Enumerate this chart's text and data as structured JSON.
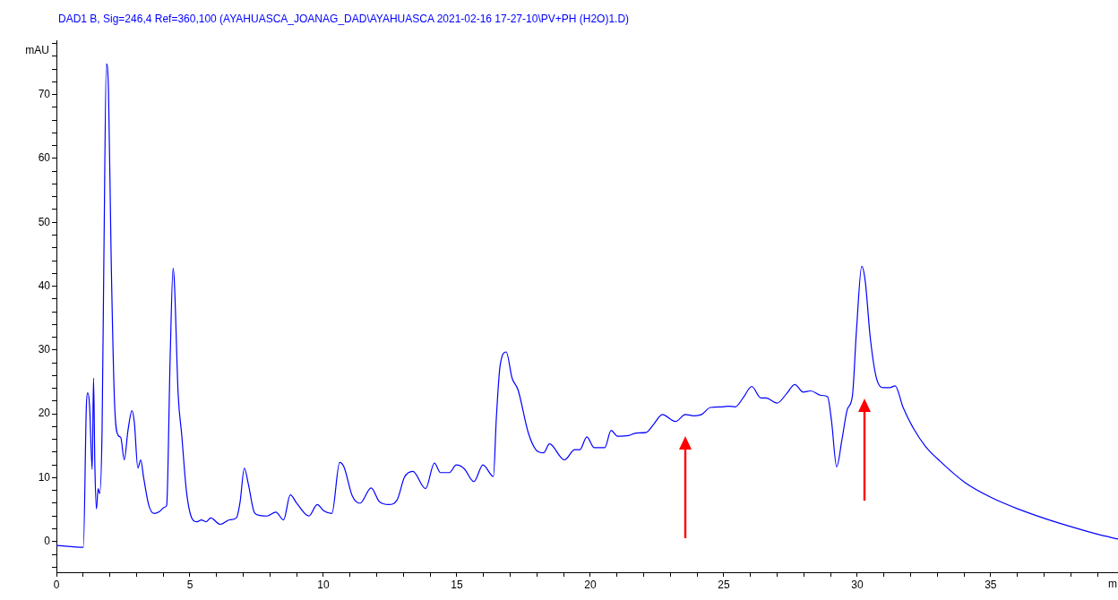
{
  "chart_data": {
    "type": "line",
    "title": "DAD1 B, Sig=246,4 Ref=360,100 (AYAHUASCA_JOANAG_DAD\\AYAHUASCA 2021-02-16 17-27-10\\PV+PH (H2O)1.D)",
    "ylabel": "mAU",
    "xlabel": "m",
    "x": [
      0,
      1.01,
      1.12,
      1.17,
      1.24,
      1.34,
      1.39,
      1.44,
      1.5,
      1.56,
      1.62,
      1.71,
      1.78,
      1.87,
      1.95,
      2.05,
      2.18,
      2.32,
      2.41,
      2.54,
      2.68,
      2.83,
      2.92,
      3.05,
      3.16,
      3.26,
      3.46,
      3.66,
      3.86,
      4.06,
      4.13,
      4.26,
      4.37,
      4.42,
      4.56,
      4.69,
      4.87,
      5.07,
      5.27,
      5.43,
      5.6,
      5.78,
      6.14,
      6.48,
      6.74,
      6.88,
      7.04,
      7.19,
      7.42,
      7.62,
      7.89,
      8.22,
      8.51,
      8.76,
      9.02,
      9.46,
      9.77,
      10.02,
      10.32,
      10.61,
      10.77,
      11.08,
      11.37,
      11.79,
      12.09,
      12.45,
      12.76,
      13.04,
      13.35,
      13.83,
      14.16,
      14.39,
      14.72,
      14.98,
      15.28,
      15.64,
      15.98,
      16.37,
      16.48,
      16.62,
      16.85,
      17.07,
      17.29,
      17.68,
      17.96,
      18.25,
      18.47,
      19.03,
      19.42,
      19.61,
      19.87,
      20.15,
      20.54,
      20.78,
      21.02,
      21.43,
      21.71,
      22.1,
      22.38,
      22.7,
      23.19,
      23.56,
      23.89,
      24.17,
      24.5,
      24.96,
      25.18,
      25.43,
      25.74,
      26.05,
      26.39,
      26.58,
      27,
      27.36,
      27.66,
      27.98,
      28.26,
      28.65,
      28.89,
      29.04,
      29.23,
      29.43,
      29.63,
      29.82,
      29.97,
      30.17,
      30.3,
      30.49,
      30.72,
      31,
      31.22,
      31.42,
      31.72,
      32.11,
      32.56,
      33.1,
      34.02,
      35.02,
      36.03,
      37.04,
      38.04,
      39.05,
      39.77
    ],
    "series": [
      {
        "color": "#0000ff",
        "values": [
          -0.6,
          -0.9,
          21.1,
          23.3,
          21.4,
          11.3,
          25.6,
          11.8,
          5.1,
          8.3,
          7.5,
          17.5,
          45.5,
          74.8,
          70.7,
          44.4,
          21.4,
          16.6,
          16.3,
          12.8,
          17.4,
          20.5,
          18.6,
          11.5,
          12.8,
          10.2,
          5.7,
          4.4,
          4.7,
          5.4,
          5.7,
          28.7,
          42.8,
          40.5,
          23.1,
          16.9,
          7.9,
          3.7,
          3.1,
          3.4,
          3.1,
          3.7,
          2.7,
          3.4,
          3.7,
          6.2,
          11.5,
          9,
          4.5,
          4.1,
          4,
          4.6,
          3.4,
          7.3,
          5.9,
          4,
          5.8,
          4.8,
          4.4,
          12.4,
          11.7,
          7.2,
          6,
          8.4,
          6.3,
          5.8,
          6.5,
          10.1,
          11,
          8.3,
          12.3,
          10.8,
          10.8,
          12,
          11.4,
          9.4,
          12,
          10.2,
          19.3,
          27.5,
          29.7,
          25.6,
          23.8,
          17,
          14.4,
          13.9,
          15.3,
          12.8,
          14.4,
          14.4,
          16.4,
          14.7,
          14.7,
          17.4,
          16.5,
          16.6,
          17,
          17.1,
          18.4,
          19.9,
          18.8,
          19.9,
          19.7,
          19.9,
          21,
          21.1,
          21.2,
          21.1,
          22.6,
          24.3,
          22.5,
          22.5,
          21.7,
          23.2,
          24.6,
          23.4,
          23.6,
          22.9,
          22.7,
          18.8,
          11.7,
          16,
          20.7,
          22.8,
          32.9,
          43.1,
          40.8,
          31.9,
          25.6,
          24.1,
          24.1,
          24.4,
          21,
          17.7,
          14.9,
          12.6,
          9.3,
          6.9,
          5.1,
          3.6,
          2.3,
          1.1,
          0.4
        ]
      }
    ],
    "xlim": [
      0,
      39.77
    ],
    "ylim": [
      -4.8,
      78.5
    ],
    "xticks": [
      0,
      {
        "value": 1,
        "label": null
      },
      {
        "value": 2,
        "label": null
      },
      {
        "value": 3,
        "label": null
      },
      {
        "value": 4,
        "label": null
      },
      5,
      {
        "value": 6,
        "label": null
      },
      {
        "value": 7,
        "label": null
      },
      {
        "value": 8,
        "label": null
      },
      {
        "value": 9,
        "label": null
      },
      10,
      {
        "value": 11,
        "label": null
      },
      {
        "value": 12,
        "label": null
      },
      {
        "value": 13,
        "label": null
      },
      {
        "value": 14,
        "label": null
      },
      15,
      {
        "value": 16,
        "label": null
      },
      {
        "value": 17,
        "label": null
      },
      {
        "value": 18,
        "label": null
      },
      {
        "value": 19,
        "label": null
      },
      20,
      {
        "value": 21,
        "label": null
      },
      {
        "value": 22,
        "label": null
      },
      {
        "value": 23,
        "label": null
      },
      {
        "value": 24,
        "label": null
      },
      25,
      {
        "value": 26,
        "label": null
      },
      {
        "value": 27,
        "label": null
      },
      {
        "value": 28,
        "label": null
      },
      {
        "value": 29,
        "label": null
      },
      30,
      {
        "value": 31,
        "label": null
      },
      {
        "value": 32,
        "label": null
      },
      {
        "value": 33,
        "label": null
      },
      {
        "value": 34,
        "label": null
      },
      35,
      {
        "value": 36,
        "label": null
      },
      {
        "value": 37,
        "label": null
      },
      {
        "value": 38,
        "label": null
      },
      {
        "value": 39,
        "label": null
      }
    ],
    "yticks": [
      {
        "value": -4,
        "label": null
      },
      {
        "value": -2,
        "label": null
      },
      0,
      {
        "value": 2,
        "label": null
      },
      {
        "value": 4,
        "label": null
      },
      {
        "value": 6,
        "label": null
      },
      {
        "value": 8,
        "label": null
      },
      10,
      {
        "value": 12,
        "label": null
      },
      {
        "value": 14,
        "label": null
      },
      {
        "value": 16,
        "label": null
      },
      {
        "value": 18,
        "label": null
      },
      20,
      {
        "value": 22,
        "label": null
      },
      {
        "value": 24,
        "label": null
      },
      {
        "value": 26,
        "label": null
      },
      {
        "value": 28,
        "label": null
      },
      30,
      {
        "value": 32,
        "label": null
      },
      {
        "value": 34,
        "label": null
      },
      {
        "value": 36,
        "label": null
      },
      {
        "value": 38,
        "label": null
      },
      40,
      {
        "value": 42,
        "label": null
      },
      {
        "value": 44,
        "label": null
      },
      {
        "value": 46,
        "label": null
      },
      {
        "value": 48,
        "label": null
      },
      50,
      {
        "value": 52,
        "label": null
      },
      {
        "value": 54,
        "label": null
      },
      {
        "value": 56,
        "label": null
      },
      {
        "value": 58,
        "label": null
      },
      60,
      {
        "value": 62,
        "label": null
      },
      {
        "value": 64,
        "label": null
      },
      {
        "value": 66,
        "label": null
      },
      {
        "value": 68,
        "label": null
      },
      70,
      {
        "value": 72,
        "label": null
      },
      {
        "value": 74,
        "label": null
      },
      {
        "value": 76,
        "label": null
      },
      {
        "value": 78,
        "label": null
      }
    ],
    "grid": false,
    "marker": "none",
    "line_style": "solid"
  }
}
